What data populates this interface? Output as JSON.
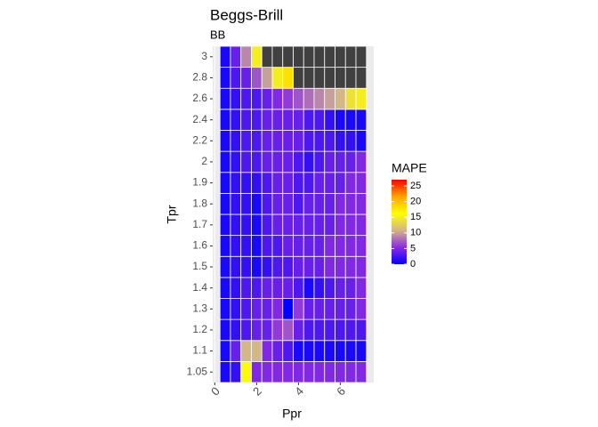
{
  "chart_data": {
    "type": "heatmap",
    "title": "Beggs-Brill",
    "subtitle": "BB",
    "x_label": "Ppr",
    "y_label": "Tpr",
    "legend_title": "MAPE",
    "x": [
      0.5,
      1,
      1.5,
      2,
      2.5,
      3,
      3.5,
      4,
      4.5,
      5,
      5.5,
      6,
      6.5,
      7
    ],
    "y": [
      "1.05",
      "1.1",
      "1.2",
      "1.3",
      "1.4",
      "1.5",
      "1.6",
      "1.7",
      "1.8",
      "1.9",
      "2",
      "2.2",
      "2.4",
      "2.6",
      "2.8",
      "3"
    ],
    "values": [
      [
        1,
        2,
        16,
        5,
        5,
        5,
        5,
        5,
        5,
        5,
        5,
        5,
        5,
        5
      ],
      [
        1,
        4,
        11,
        11,
        5,
        4,
        3,
        1,
        1,
        1,
        1,
        1,
        1,
        1
      ],
      [
        1,
        2,
        3,
        4,
        4,
        6,
        7,
        4,
        3,
        3,
        3,
        3,
        3,
        3
      ],
      [
        1,
        2,
        3,
        4,
        4,
        5,
        0,
        6,
        4,
        4,
        4,
        4,
        4,
        5
      ],
      [
        1,
        2,
        3,
        3,
        4,
        4,
        4,
        3,
        1,
        2,
        3,
        4,
        4,
        5
      ],
      [
        1,
        2,
        2,
        1,
        2,
        3,
        3,
        4,
        4,
        4,
        5,
        5,
        5,
        5
      ],
      [
        1,
        2,
        2,
        1,
        3,
        3,
        4,
        4,
        4,
        4,
        5,
        5,
        5,
        5
      ],
      [
        1,
        2,
        2,
        1,
        3,
        4,
        4,
        4,
        4,
        4,
        4,
        5,
        5,
        5
      ],
      [
        1,
        2,
        2,
        1,
        3,
        4,
        4,
        3,
        4,
        4,
        4,
        5,
        5,
        5
      ],
      [
        1,
        2,
        2,
        2,
        3,
        4,
        4,
        3,
        3,
        4,
        4,
        4,
        5,
        5
      ],
      [
        1,
        2,
        3,
        3,
        4,
        4,
        4,
        3,
        2,
        3,
        4,
        4,
        4,
        5
      ],
      [
        1,
        2,
        3,
        3,
        4,
        4,
        4,
        4,
        3,
        3,
        3,
        2,
        2,
        1
      ],
      [
        1,
        2,
        3,
        3,
        4,
        4,
        4,
        4,
        3,
        3,
        2,
        1,
        1,
        1
      ],
      [
        1,
        2,
        3,
        3,
        4,
        5,
        6,
        7,
        8,
        9,
        10,
        11,
        14,
        15
      ],
      [
        1,
        3,
        4,
        7,
        10,
        15,
        18,
        null,
        null,
        null,
        null,
        null,
        null,
        null
      ],
      [
        1,
        4,
        9,
        15,
        null,
        null,
        null,
        null,
        null,
        null,
        null,
        null,
        null,
        null
      ]
    ],
    "xlim": [
      -0.1,
      7.6
    ],
    "xticks": [
      0,
      2,
      4,
      6
    ],
    "clim": [
      0,
      27
    ],
    "cticks": [
      0,
      5,
      10,
      15,
      20,
      25
    ],
    "colors": [
      "#0000ff",
      "#8a2be2",
      "#d2b48c",
      "#ffff00",
      "#ffa500",
      "#ff0000"
    ],
    "na_color": "#404040",
    "grid": true
  }
}
